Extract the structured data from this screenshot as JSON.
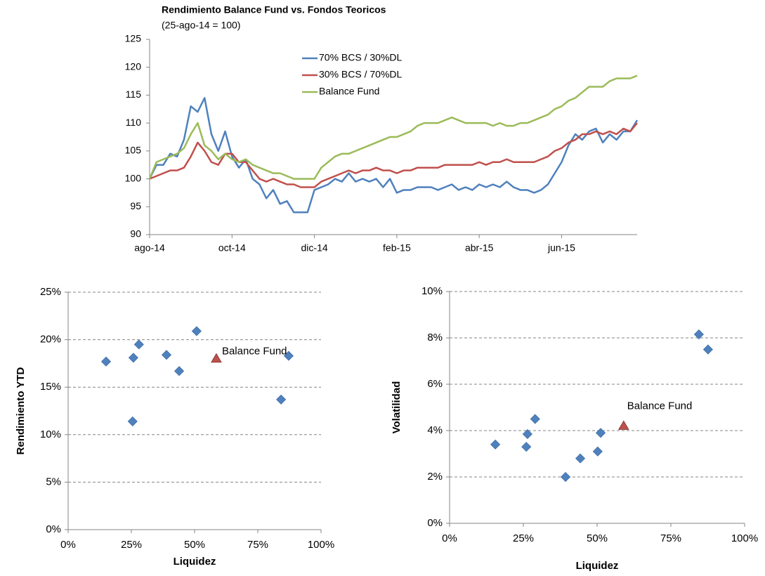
{
  "chart_data": [
    {
      "type": "line",
      "title": "Rendimiento Balance Fund vs. Fondos Teoricos",
      "subtitle": "(25-ago-14 = 100)",
      "categories": [
        "ago-14",
        null,
        null,
        null,
        null,
        null,
        null,
        null,
        null,
        null,
        null,
        null,
        "oct-14",
        null,
        null,
        null,
        null,
        null,
        null,
        null,
        null,
        null,
        null,
        null,
        "dic-14",
        null,
        null,
        null,
        null,
        null,
        null,
        null,
        null,
        null,
        null,
        null,
        "feb-15",
        null,
        null,
        null,
        null,
        null,
        null,
        null,
        null,
        null,
        null,
        null,
        "abr-15",
        null,
        null,
        null,
        null,
        null,
        null,
        null,
        null,
        null,
        null,
        null,
        "jun-15",
        null,
        null,
        null,
        null,
        null,
        null,
        null,
        null,
        null,
        null,
        null
      ],
      "series": [
        {
          "name": "70% BCS / 30%DL",
          "color": "#4f81bd",
          "values": [
            100,
            102.5,
            102.5,
            104.5,
            104,
            107,
            113,
            112,
            114.5,
            108,
            105,
            108.5,
            104,
            102,
            103.5,
            100,
            99,
            96.5,
            98,
            95.5,
            96,
            94,
            94,
            94,
            98,
            98.5,
            99,
            100,
            99.5,
            101,
            99.5,
            100,
            99.5,
            100,
            98.5,
            100,
            97.5,
            98,
            98,
            98.5,
            98.5,
            98.5,
            98,
            98.5,
            99,
            98,
            98.5,
            98,
            99,
            98.5,
            99,
            98.5,
            99.5,
            98.5,
            98,
            98,
            97.5,
            98,
            99,
            101,
            103,
            106,
            108,
            107,
            108.5,
            109,
            106.5,
            108,
            107,
            108.5,
            108.5,
            110.5
          ]
        },
        {
          "name": "30% BCS / 70%DL",
          "color": "#c0504d",
          "values": [
            100,
            100.5,
            101,
            101.5,
            101.5,
            102,
            104,
            106.5,
            105,
            103,
            102.5,
            104.5,
            104.5,
            103,
            103,
            101.5,
            100,
            99.5,
            100,
            99.5,
            99,
            99,
            98.5,
            98.5,
            98.5,
            99.5,
            100,
            100.5,
            101,
            101.5,
            101,
            101.5,
            101.5,
            102,
            101.5,
            101.5,
            101,
            101.5,
            101.5,
            102,
            102,
            102,
            102,
            102.5,
            102.5,
            102.5,
            102.5,
            102.5,
            103,
            102.5,
            103,
            103,
            103.5,
            103,
            103,
            103,
            103,
            103.5,
            104,
            105,
            105.5,
            106.5,
            107,
            108,
            108,
            108.5,
            108,
            108.5,
            108,
            109,
            108.5,
            110
          ]
        },
        {
          "name": "Balance Fund",
          "color": "#9bbb59",
          "values": [
            100,
            103,
            103.5,
            104,
            104.5,
            105.5,
            108,
            110,
            106,
            105,
            103.5,
            104.5,
            103.5,
            103,
            103.5,
            102.5,
            102,
            101.5,
            101,
            101,
            100.5,
            100,
            100,
            100,
            100,
            102,
            103,
            104,
            104.5,
            104.5,
            105,
            105.5,
            106,
            106.5,
            107,
            107.5,
            107.5,
            108,
            108.5,
            109.5,
            110,
            110,
            110,
            110.5,
            111,
            110.5,
            110,
            110,
            110,
            110,
            109.5,
            110,
            109.5,
            109.5,
            110,
            110,
            110.5,
            111,
            111.5,
            112.5,
            113,
            114,
            114.5,
            115.5,
            116.5,
            116.5,
            116.5,
            117.5,
            118,
            118,
            118,
            118.5
          ]
        }
      ],
      "ylim": [
        90,
        125
      ],
      "yticks": [
        90,
        95,
        100,
        105,
        110,
        115,
        120,
        125
      ],
      "grid": false,
      "legend": "upper center"
    },
    {
      "type": "scatter",
      "xlabel": "Liquidez",
      "ylabel": "Rendimiento YTD",
      "series": [
        {
          "color": "#4f81bd",
          "marker": "diamond",
          "x": [
            15,
            25.8,
            28,
            25.5,
            38.9,
            43.9,
            50.8,
            84.2,
            87.2
          ],
          "values": [
            17.7,
            18.1,
            19.5,
            11.4,
            18.4,
            16.7,
            20.9,
            13.7,
            18.3
          ]
        },
        {
          "name": "Balance Fund",
          "color": "#c0504d",
          "marker": "triangle",
          "x": [
            58.6
          ],
          "values": [
            18
          ]
        }
      ],
      "xlim": [
        0,
        100
      ],
      "xticks": [
        {
          "value": 0,
          "label": "0%"
        },
        {
          "value": 25,
          "label": "25%"
        },
        {
          "value": 50,
          "label": "50%"
        },
        {
          "value": 75,
          "label": "75%"
        },
        {
          "value": 100,
          "label": "100%"
        }
      ],
      "ylim": [
        0,
        25
      ],
      "yticks": [
        {
          "value": 0,
          "label": "0%"
        },
        {
          "value": 5,
          "label": "5%"
        },
        {
          "value": 10,
          "label": "10%"
        },
        {
          "value": 15,
          "label": "15%"
        },
        {
          "value": 20,
          "label": "20%"
        },
        {
          "value": 25,
          "label": "25%"
        }
      ],
      "grid": true
    },
    {
      "type": "scatter",
      "xlabel": "Liquidez",
      "ylabel": "Volatilidad",
      "series": [
        {
          "color": "#4f81bd",
          "marker": "diamond",
          "x": [
            15.5,
            26,
            26.4,
            29,
            39.3,
            44.3,
            50.2,
            51.2,
            84.5,
            87.6
          ],
          "values": [
            3.4,
            3.3,
            3.85,
            4.5,
            2.0,
            2.8,
            3.1,
            3.9,
            8.15,
            7.5
          ]
        },
        {
          "name": "Balance Fund",
          "color": "#c0504d",
          "marker": "triangle",
          "x": [
            59
          ],
          "values": [
            4.2
          ]
        }
      ],
      "xlim": [
        0,
        100
      ],
      "xticks": [
        {
          "value": 0,
          "label": "0%"
        },
        {
          "value": 25,
          "label": "25%"
        },
        {
          "value": 50,
          "label": "50%"
        },
        {
          "value": 75,
          "label": "75%"
        },
        {
          "value": 100,
          "label": "100%"
        }
      ],
      "ylim": [
        0,
        10
      ],
      "yticks": [
        {
          "value": 0,
          "label": "0%"
        },
        {
          "value": 2,
          "label": "2%"
        },
        {
          "value": 4,
          "label": "4%"
        },
        {
          "value": 6,
          "label": "6%"
        },
        {
          "value": 8,
          "label": "8%"
        },
        {
          "value": 10,
          "label": "10%"
        }
      ],
      "grid": true
    }
  ]
}
